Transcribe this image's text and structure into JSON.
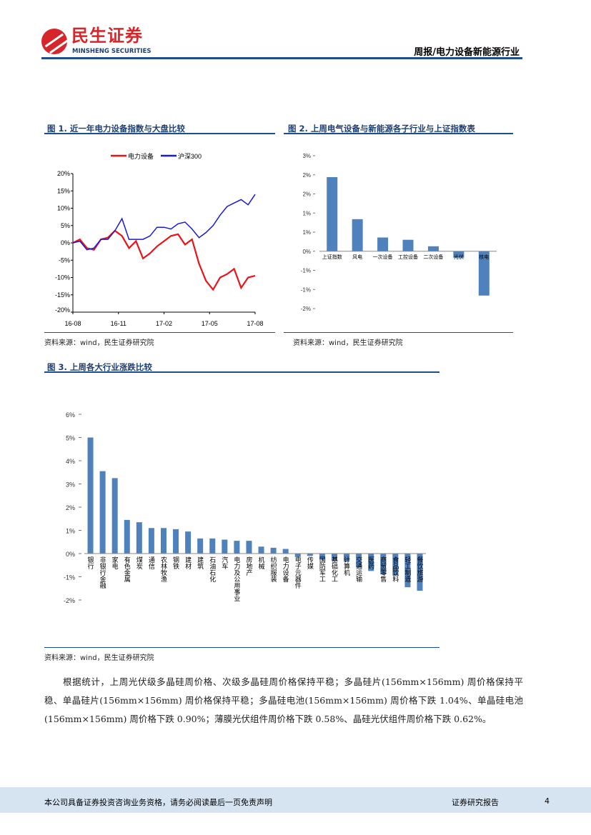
{
  "header": {
    "logo_cn": "民生证券",
    "logo_en": "MINSHENG SECURITIES",
    "report_title": "周报/电力设备新能源行业"
  },
  "fig1": {
    "title": "图 1.  近一年电力设备指数与大盘比较",
    "source": "资料来源：wind，民生证券研究院"
  },
  "fig2": {
    "title": "图 2.  上周电气设备与新能源各子行业与上证指数表",
    "source": "资料来源：wind，民生证券研究院"
  },
  "fig3": {
    "title": "图 3.  上周各大行业涨跌比较",
    "source": "资料来源：wind，民生证券研究院"
  },
  "colors": {
    "accent": "#1f4e8c",
    "bar": "#4f81bd",
    "red_series": "#e8141a",
    "blue_series": "#1a1ad6",
    "footer_bg": "#d6e3f0"
  },
  "chart_data": [
    {
      "type": "line",
      "title": "",
      "xlabel": "",
      "ylabel": "",
      "x_ticks": [
        "16-08",
        "16-11",
        "17-02",
        "17-05",
        "17-08"
      ],
      "y_ticks": [
        "20%",
        "15%",
        "10%",
        "5%",
        "0%",
        "-5%",
        "-10%",
        "-15%",
        "-20%"
      ],
      "ylim": [
        -20,
        20
      ],
      "legend": "top",
      "x": [
        "2016-08-15",
        "2016-08-29",
        "2016-09-12",
        "2016-09-26",
        "2016-10-10",
        "2016-10-24",
        "2016-11-07",
        "2016-11-21",
        "2016-12-05",
        "2016-12-19",
        "2017-01-02",
        "2017-01-16",
        "2017-01-30",
        "2017-02-13",
        "2017-02-27",
        "2017-03-13",
        "2017-03-27",
        "2017-04-10",
        "2017-04-24",
        "2017-05-08",
        "2017-05-22",
        "2017-06-05",
        "2017-06-19",
        "2017-07-03",
        "2017-07-17",
        "2017-07-31",
        "2017-08-14"
      ],
      "series": [
        {
          "name": "电力设备",
          "color": "#e8141a",
          "values": [
            0,
            1,
            -1.5,
            -2,
            1,
            1.5,
            3.5,
            2,
            -1.5,
            0.5,
            -4.5,
            -3,
            -1,
            0.5,
            2,
            2.5,
            -0.5,
            1,
            -6,
            -11,
            -13.5,
            -10,
            -9,
            -7.5,
            -13,
            -10,
            -9.5
          ]
        },
        {
          "name": "沪深300",
          "color": "#1a1ad6",
          "values": [
            0,
            0.5,
            -2,
            -1.5,
            1,
            1,
            3.5,
            7,
            1,
            1,
            1,
            2,
            4.5,
            4.5,
            4,
            5.5,
            6,
            4,
            1.5,
            3,
            5,
            8,
            10.5,
            11.5,
            12.5,
            11,
            14
          ]
        }
      ]
    },
    {
      "type": "bar",
      "title": "",
      "xlabel": "",
      "ylabel": "",
      "y_ticks": [
        "3%",
        "2%",
        "2%",
        "1%",
        "1%",
        "0%",
        "-1%",
        "-1%",
        "-2%"
      ],
      "ylim": [
        -1.5,
        2.5
      ],
      "categories": [
        "上证指数",
        "风电",
        "一次设备",
        "工控设备",
        "二次设备",
        "光伏",
        "核电"
      ],
      "values": [
        1.94,
        0.84,
        0.36,
        0.3,
        0.13,
        -0.17,
        -1.16
      ]
    },
    {
      "type": "bar",
      "title": "",
      "xlabel": "",
      "ylabel": "",
      "y_ticks": [
        "6%",
        "5%",
        "4%",
        "3%",
        "2%",
        "1%",
        "0%",
        "-1%",
        "-2%"
      ],
      "ylim": [
        -2,
        6
      ],
      "categories": [
        "银行",
        "非银行金融",
        "家电",
        "有色金属",
        "煤炭",
        "通信",
        "农林牧渔",
        "钢铁",
        "建材",
        "建筑",
        "石油石化",
        "汽车",
        "电力及公用事业",
        "房地产",
        "机械",
        "纺织服装",
        "电力设备",
        "电子元器件",
        "传媒",
        "国防军工",
        "基础化工",
        "计算机",
        "交通运输",
        "医药",
        "商贸零售",
        "食品饮料",
        "轻工制造",
        "餐饮旅游"
      ],
      "values": [
        5.0,
        3.55,
        3.25,
        1.45,
        1.35,
        1.1,
        1.1,
        1.05,
        0.95,
        0.65,
        0.65,
        0.6,
        0.55,
        0.55,
        0.3,
        0.25,
        0.2,
        -0.15,
        -0.1,
        -0.25,
        -0.3,
        -0.35,
        -0.6,
        -0.75,
        -0.9,
        -0.95,
        -1.45,
        -1.6
      ]
    }
  ],
  "paragraph": "根据统计，上周光伏级多晶硅周价格、次级多晶硅周价格保持平稳；多晶硅片(156mm×156mm) 周价格保持平稳、单晶硅片(156mm×156mm) 周价格保持平稳；多晶硅电池(156mm×156mm) 周价格下跌 1.04%、单晶硅电池(156mm×156mm) 周价格下跌 0.90%；薄膜光伏组件周价格下跌 0.58%、晶硅光伏组件周价格下跌 0.62%。",
  "footer": {
    "disclaimer": "本公司具备证券投资咨询业务资格，请务必阅读最后一页免责声明",
    "doc_type": "证券研究报告",
    "page": "4"
  }
}
